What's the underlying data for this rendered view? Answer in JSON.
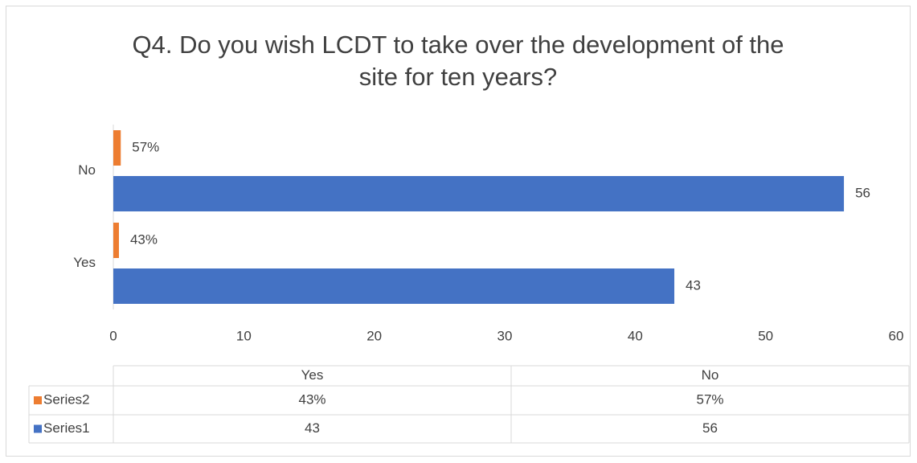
{
  "chart_data": {
    "type": "bar",
    "orientation": "horizontal",
    "title": "Q4. Do you wish LCDT to take over the development of the site for ten years?",
    "categories": [
      "Yes",
      "No"
    ],
    "series": [
      {
        "name": "Series1",
        "color": "#4472c4",
        "values": [
          43,
          56
        ]
      },
      {
        "name": "Series2",
        "color": "#ed7d31",
        "values": [
          0.43,
          0.57
        ],
        "value_labels": [
          "43%",
          "57%"
        ]
      }
    ],
    "xlim": [
      0,
      60
    ],
    "xticks": [
      0,
      10,
      20,
      30,
      40,
      50,
      60
    ],
    "data_table": true
  }
}
